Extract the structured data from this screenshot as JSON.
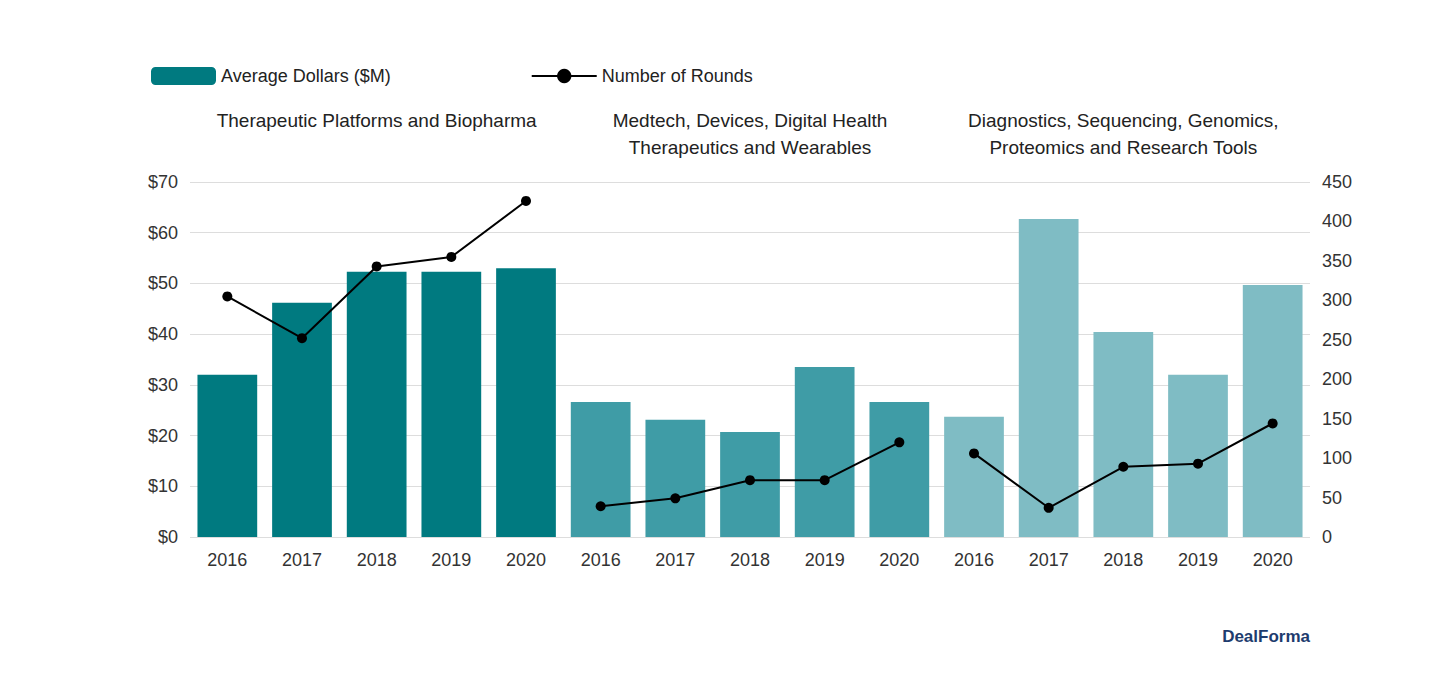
{
  "chart_data": {
    "type": "bar",
    "groups": [
      {
        "title": "Therapeutic Platforms and Biopharma",
        "categories": [
          "2016",
          "2017",
          "2018",
          "2019",
          "2020"
        ],
        "color": "#007a80"
      },
      {
        "title": "Medtech, Devices, Digital Health\nTherapeutics and Wearables",
        "categories": [
          "2016",
          "2017",
          "2018",
          "2019",
          "2020"
        ],
        "color": "#3f9ca6"
      },
      {
        "title": "Diagnostics, Sequencing, Genomics,\nProteomics and Research Tools",
        "categories": [
          "2016",
          "2017",
          "2018",
          "2019",
          "2020"
        ],
        "color": "#7fbcc4"
      }
    ],
    "series": [
      {
        "name": "Average Dollars ($M)",
        "type": "bar",
        "color": "#007a80",
        "values": [
          32,
          46.2,
          52.3,
          52.3,
          53,
          26.6,
          23.1,
          20.7,
          33.5,
          26.6,
          23.7,
          62.7,
          40.4,
          32,
          49.7
        ]
      },
      {
        "name": "Number of Rounds",
        "type": "line",
        "axis": "y2",
        "color": "#000000",
        "marker": "circle",
        "values": [
          305,
          252,
          343,
          355,
          426,
          39,
          49,
          72,
          72,
          120,
          106,
          37,
          89,
          93,
          144
        ]
      }
    ],
    "ylim": [
      0,
      70
    ],
    "yticks": [
      {
        "value": 0,
        "label": "$0"
      },
      {
        "value": 10,
        "label": "$10"
      },
      {
        "value": 20,
        "label": "$20"
      },
      {
        "value": 30,
        "label": "$30"
      },
      {
        "value": 40,
        "label": "$40"
      },
      {
        "value": 50,
        "label": "$50"
      },
      {
        "value": 60,
        "label": "$60"
      },
      {
        "value": 70,
        "label": "$70"
      }
    ],
    "y2lim": [
      0,
      450
    ],
    "y2ticks": [
      0,
      50,
      100,
      150,
      200,
      250,
      300,
      350,
      400,
      450
    ],
    "grid": true,
    "legend": "top-left",
    "source": "DealForma"
  }
}
